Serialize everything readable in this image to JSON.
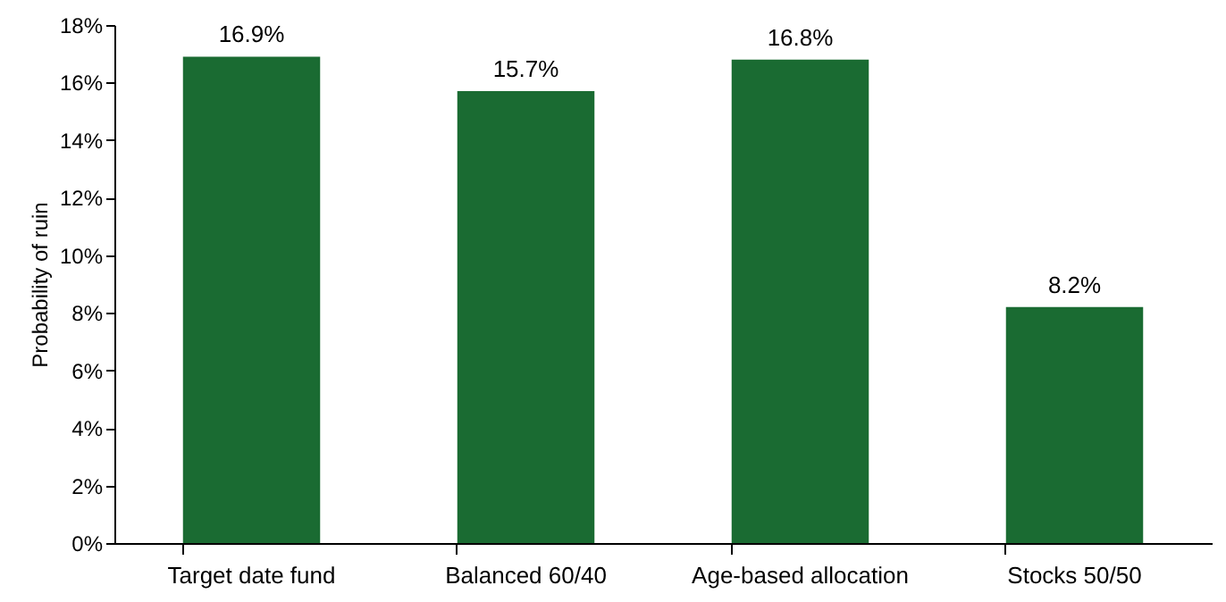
{
  "chart_data": {
    "type": "bar",
    "ylabel": "Probability of ruin",
    "categories": [
      "Target date fund",
      "Balanced 60/40",
      "Age-based allocation",
      "Stocks 50/50"
    ],
    "values": [
      16.9,
      15.7,
      16.8,
      8.2
    ],
    "value_labels": [
      "16.9%",
      "15.7%",
      "16.8%",
      "8.2%"
    ],
    "color": "#1a6b32",
    "ylim": [
      0,
      18
    ],
    "yticks": [
      {
        "value": 0,
        "label": "0%"
      },
      {
        "value": 2,
        "label": "2%"
      },
      {
        "value": 4,
        "label": "4%"
      },
      {
        "value": 6,
        "label": "6%"
      },
      {
        "value": 8,
        "label": "8%"
      },
      {
        "value": 10,
        "label": "10%"
      },
      {
        "value": 12,
        "label": "12%"
      },
      {
        "value": 14,
        "label": "14%"
      },
      {
        "value": 16,
        "label": "16%"
      },
      {
        "value": 18,
        "label": "18%"
      }
    ],
    "grid": false
  }
}
